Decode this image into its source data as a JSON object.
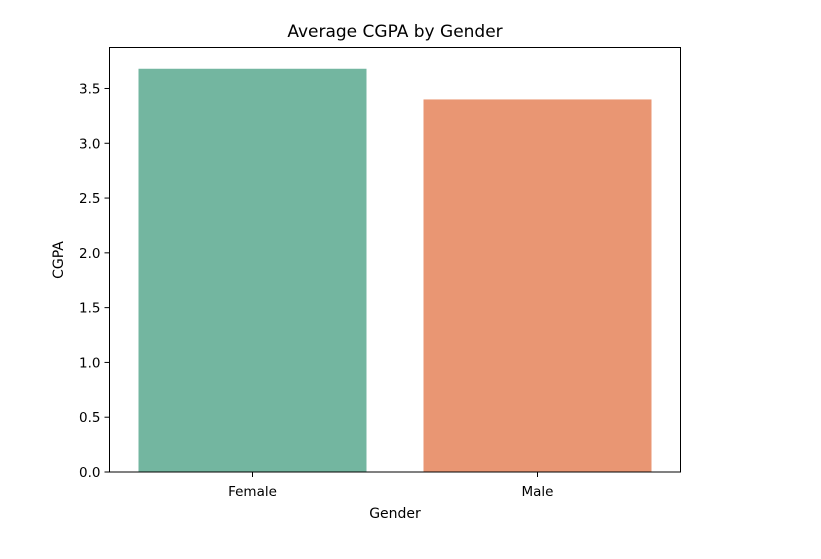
{
  "chart_data": {
    "type": "bar",
    "title": "Average CGPA by Gender",
    "xlabel": "Gender",
    "ylabel": "CGPA",
    "categories": [
      "Female",
      "Male"
    ],
    "values": [
      3.68,
      3.4
    ],
    "colors": [
      "#73b6a0",
      "#e99673"
    ],
    "ylim": [
      0,
      3.68
    ],
    "yticks": [
      {
        "value": 0.0,
        "label": "0.0"
      },
      {
        "value": 0.5,
        "label": "0.5"
      },
      {
        "value": 1.0,
        "label": "1.0"
      },
      {
        "value": 1.5,
        "label": "1.5"
      },
      {
        "value": 2.0,
        "label": "2.0"
      },
      {
        "value": 2.5,
        "label": "2.5"
      },
      {
        "value": 3.0,
        "label": "3.0"
      },
      {
        "value": 3.5,
        "label": "3.5"
      }
    ],
    "grid": false,
    "legend": "none"
  }
}
